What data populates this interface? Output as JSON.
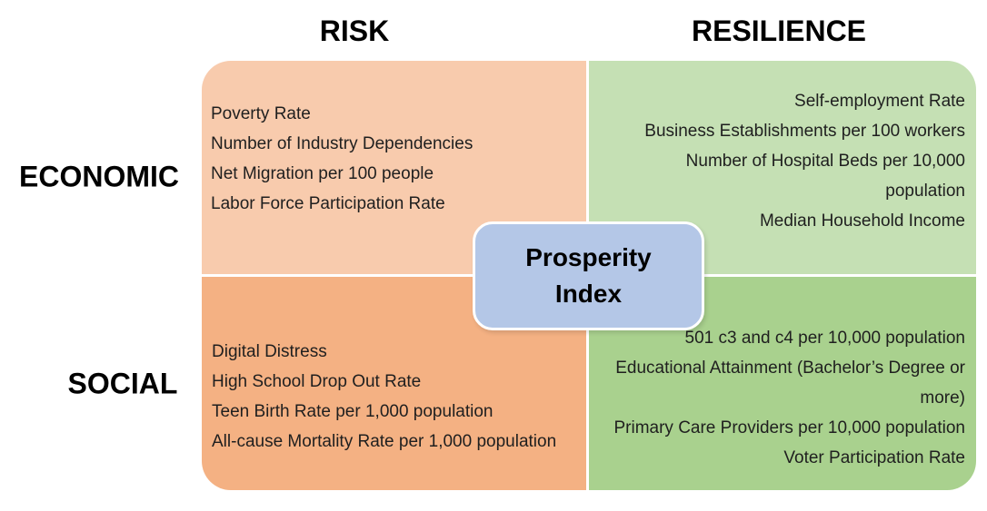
{
  "columns": [
    {
      "id": "risk",
      "label": "RISK"
    },
    {
      "id": "resilience",
      "label": "RESILIENCE"
    }
  ],
  "rows": [
    {
      "id": "economic",
      "label": "ECONOMIC"
    },
    {
      "id": "social",
      "label": "SOCIAL"
    }
  ],
  "center": {
    "label": "Prosperity Index"
  },
  "quadrants": {
    "economic_risk": {
      "items": [
        "Poverty Rate",
        "Number of Industry Dependencies",
        "Net Migration per 100 people",
        "Labor Force Participation Rate"
      ]
    },
    "economic_resilience": {
      "items": [
        "Self-employment Rate",
        "Business Establishments per 100 workers",
        "Number of Hospital Beds per 10,000 population",
        "Median Household Income"
      ]
    },
    "social_risk": {
      "items": [
        "Digital Distress",
        "High School Drop Out Rate",
        "Teen Birth Rate per 1,000 population",
        "All-cause Mortality Rate per 1,000 population"
      ]
    },
    "social_resilience": {
      "items": [
        "501 c3 and c4 per 10,000 population",
        "Educational Attainment (Bachelor’s Degree or more)",
        "Primary Care Providers per 10,000 population",
        "Voter Participation Rate"
      ]
    }
  },
  "colors": {
    "economic_risk": "#f8cbad",
    "economic_resilience": "#c5e0b4",
    "social_risk": "#f4b183",
    "social_resilience": "#a9d18e",
    "center": "#b4c7e7"
  }
}
